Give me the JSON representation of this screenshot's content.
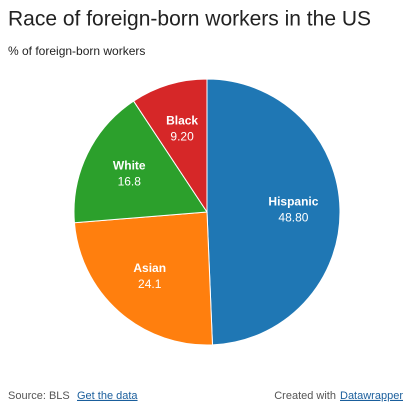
{
  "chart_data": {
    "type": "pie",
    "title": "Race of foreign-born workers in the US",
    "subtitle": "% of foreign-born workers",
    "categories": [
      "Hispanic",
      "Asian",
      "White",
      "Black"
    ],
    "values": [
      48.8,
      24.1,
      16.8,
      9.2
    ],
    "value_labels": [
      "48.80",
      "24.1",
      "16.8",
      "9.20"
    ],
    "colors": [
      "#1f77b4",
      "#ff7f0e",
      "#2ca02c",
      "#d62728"
    ],
    "source": "Source: BLS",
    "source_link": "Get the data",
    "credit": "Created with",
    "credit_link": "Datawrapper"
  }
}
